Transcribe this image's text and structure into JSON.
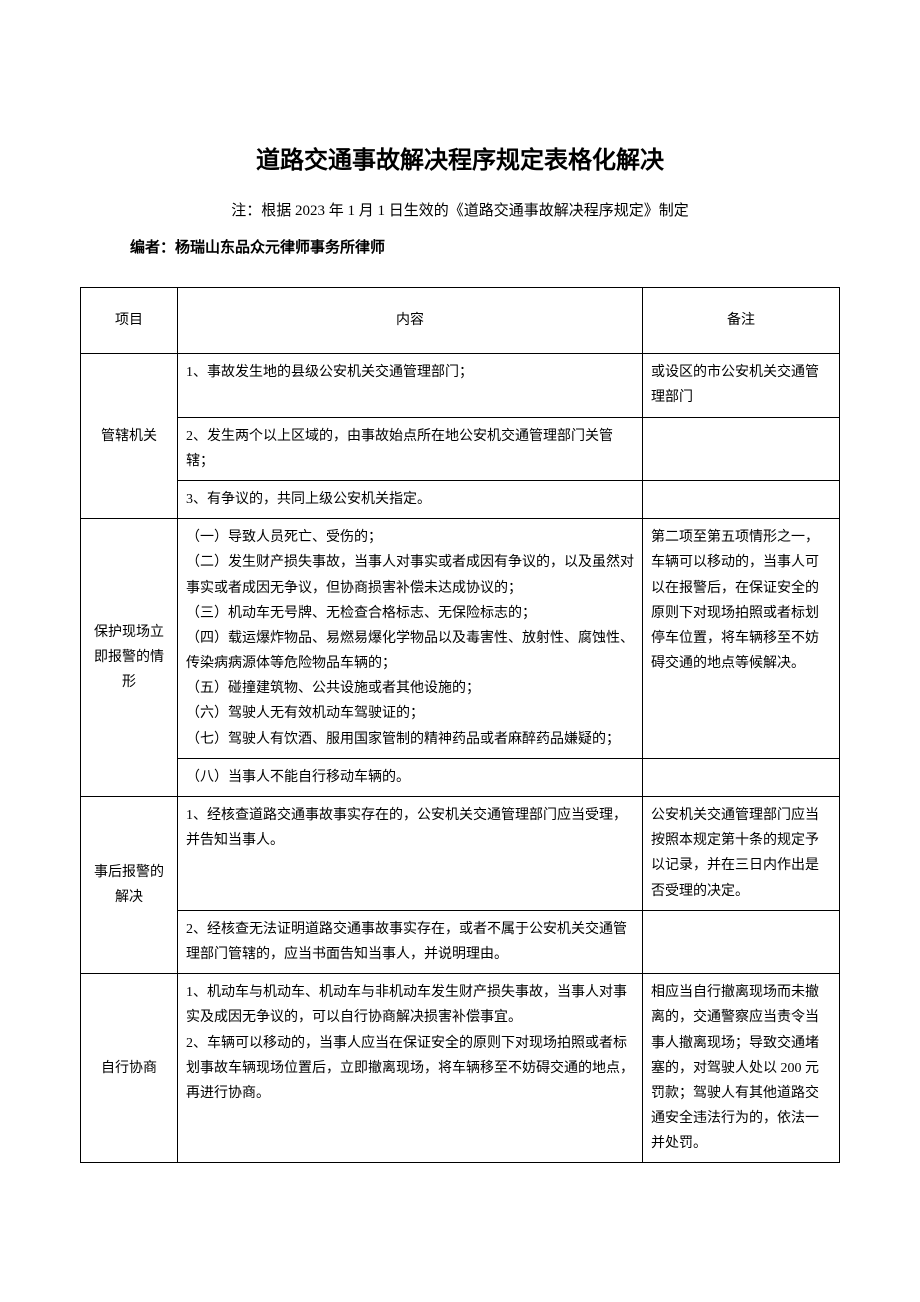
{
  "title": "道路交通事故解决程序规定表格化解决",
  "subtitle": "注：根据 2023 年 1 月 1 日生效的《道路交通事故解决程序规定》制定",
  "author": "编者：杨瑞山东品众元律师事务所律师",
  "headers": {
    "project": "项目",
    "content": "内容",
    "note": "备注"
  },
  "rows": {
    "r1": {
      "project": "管辖机关",
      "c1": "1、事故发生地的县级公安机关交通管理部门；",
      "n1": "或设区的市公安机关交通管理部门",
      "c2": "2、发生两个以上区域的，由事故始点所在地公安机交通管理部门关管辖；",
      "c3": "3、有争议的，共同上级公安机关指定。"
    },
    "r2": {
      "project": "保护现场立即报警的情形",
      "c1": "（一）导致人员死亡、受伤的；\n（二）发生财产损失事故，当事人对事实或者成因有争议的，以及虽然对事实或者成因无争议，但协商损害补偿未达成协议的；\n（三）机动车无号牌、无检查合格标志、无保险标志的；\n（四）载运爆炸物品、易燃易爆化学物品以及毒害性、放射性、腐蚀性、传染病病源体等危险物品车辆的；\n（五）碰撞建筑物、公共设施或者其他设施的；\n（六）驾驶人无有效机动车驾驶证的；\n（七）驾驶人有饮酒、服用国家管制的精神药品或者麻醉药品嫌疑的；",
      "n1": "第二项至第五项情形之一，车辆可以移动的，当事人可以在报警后，在保证安全的原则下对现场拍照或者标划停车位置，将车辆移至不妨碍交通的地点等候解决。",
      "c2": "（八）当事人不能自行移动车辆的。"
    },
    "r3": {
      "project": "事后报警的解决",
      "c1": "1、经核查道路交通事故事实存在的，公安机关交通管理部门应当受理，并告知当事人。",
      "n1": "公安机关交通管理部门应当按照本规定第十条的规定予以记录，并在三日内作出是否受理的决定。",
      "c2": "2、经核查无法证明道路交通事故事实存在，或者不属于公安机关交通管理部门管辖的，应当书面告知当事人，并说明理由。"
    },
    "r4": {
      "project": "自行协商",
      "c1": "1、机动车与机动车、机动车与非机动车发生财产损失事故，当事人对事实及成因无争议的，可以自行协商解决损害补偿事宜。\n2、车辆可以移动的，当事人应当在保证安全的原则下对现场拍照或者标划事故车辆现场位置后，立即撤离现场，将车辆移至不妨碍交通的地点，再进行协商。",
      "n1": "相应当自行撤离现场而未撤离的，交通警察应当责令当事人撤离现场；导致交通堵塞的，对驾驶人处以 200 元罚款；驾驶人有其他道路交通安全违法行为的，依法一并处罚。"
    }
  }
}
